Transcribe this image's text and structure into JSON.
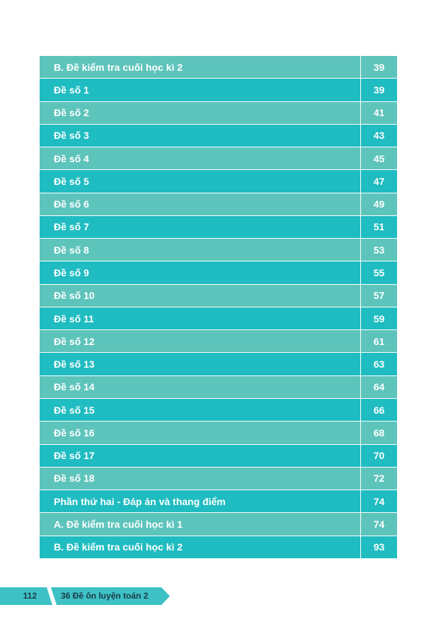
{
  "table": {
    "rows": [
      [
        "B. Đề kiểm tra cuối học kì 2",
        39
      ],
      [
        "Đề số 1",
        39
      ],
      [
        "Đề số 2",
        41
      ],
      [
        "Đề số 3",
        43
      ],
      [
        "Đề số 4",
        45
      ],
      [
        "Đề số 5",
        47
      ],
      [
        "Đề số 6",
        49
      ],
      [
        "Đề số 7",
        51
      ],
      [
        "Đề số 8",
        53
      ],
      [
        "Đề số 9",
        55
      ],
      [
        "Đề số 10",
        57
      ],
      [
        "Đề số 11",
        59
      ],
      [
        "Đề số 12",
        61
      ],
      [
        "Đề số 13",
        63
      ],
      [
        "Đề số 14",
        64
      ],
      [
        "Đề số 15",
        66
      ],
      [
        "Đề số 16",
        68
      ],
      [
        "Đề số 17",
        70
      ],
      [
        "Đề số 18",
        72
      ],
      [
        "Phần thứ hai - Đáp án và thang điểm",
        74
      ],
      [
        "A. Đề kiểm tra cuối học kì 1",
        74
      ],
      [
        "B. Đề kiểm tra cuối học kì 2",
        93
      ]
    ]
  },
  "footer": {
    "page_number": 112,
    "book_title": "36 Đề ôn luyện toán 2"
  }
}
